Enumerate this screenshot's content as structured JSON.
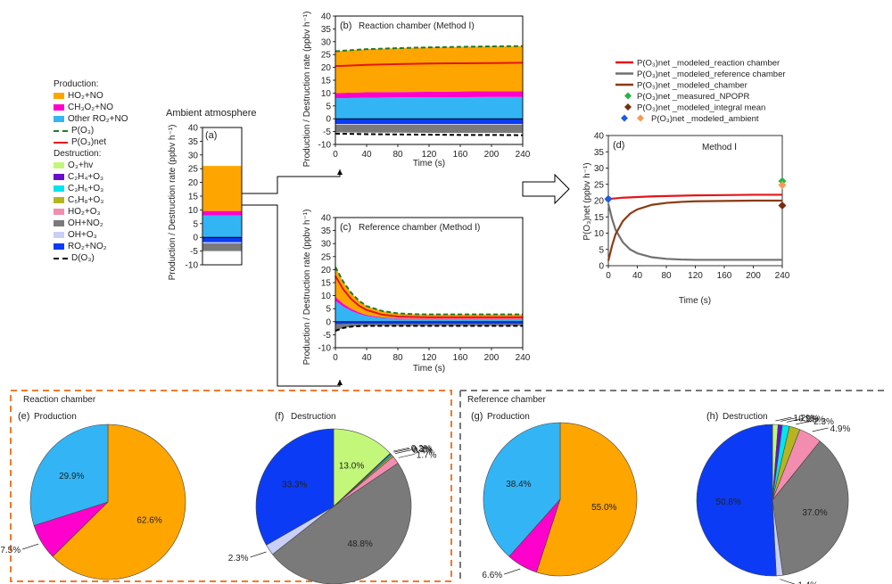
{
  "legend": {
    "production_header": "Production:",
    "destruction_header": "Destruction:",
    "production": [
      {
        "label": "HO₂+NO",
        "color": "#FFA500",
        "kind": "box"
      },
      {
        "label": "CH₃O₂+NO",
        "color": "#FF00CC",
        "kind": "box"
      },
      {
        "label": "Other RO₂+NO",
        "color": "#33B5F5",
        "kind": "box"
      },
      {
        "label": "P(O₃)",
        "color": "#1E7A2E",
        "kind": "dash"
      },
      {
        "label": "P(O₃)net",
        "color": "#E4161B",
        "kind": "line"
      }
    ],
    "destruction": [
      {
        "label": "O₃+hv",
        "color": "#C3F77A",
        "kind": "box"
      },
      {
        "label": "C₂H₄+O₃",
        "color": "#6A0DCD",
        "kind": "box"
      },
      {
        "label": "C₃H₆+O₃",
        "color": "#00E5EE",
        "kind": "box"
      },
      {
        "label": "C₅H₈+O₃",
        "color": "#B5B51F",
        "kind": "box"
      },
      {
        "label": "HO₂+O₃",
        "color": "#F28DB0",
        "kind": "box"
      },
      {
        "label": "OH+NO₂",
        "color": "#7A7A7A",
        "kind": "box"
      },
      {
        "label": "OH+O₃",
        "color": "#C9CFF5",
        "kind": "box"
      },
      {
        "label": "RO₂+NO₂",
        "color": "#0B3BF5",
        "kind": "box"
      },
      {
        "label": "D(O₃)",
        "color": "#000000",
        "kind": "dash"
      }
    ]
  },
  "panel_a": {
    "title": "Ambient atmosphere",
    "label": "(a)",
    "ylabel": "Production / Destruction rate (ppbv h⁻¹)"
  },
  "panel_b": {
    "label": "(b)",
    "title": "Reaction chamber (Method Ⅰ)",
    "xlabel": "Time (s)",
    "ylabel": "Production / Destruction rate (ppbv h⁻¹)"
  },
  "panel_c": {
    "label": "(c)",
    "title": "Reference chamber (Method Ⅰ)",
    "xlabel": "Time (s)",
    "ylabel": "Production / Destruction rate (ppbv h⁻¹)"
  },
  "panel_d": {
    "label": "(d)",
    "title": "Method Ⅰ",
    "xlabel": "Time (s)",
    "ylabel": "P(O₃)net (ppbv h⁻¹)",
    "legend": [
      {
        "label": "P(O₃)net _modeled_reaction chamber",
        "color": "#E4161B",
        "kind": "line"
      },
      {
        "label": "P(O₃)net _modeled_reference chamber",
        "color": "#707070",
        "kind": "line"
      },
      {
        "label": "P(O₃)net _modeled_chamber",
        "color": "#8B3A12",
        "kind": "line"
      },
      {
        "label": "P(O₃)net _measured_NPOPR",
        "color": "#22B545",
        "kind": "diamond"
      },
      {
        "label": "P(O₃)net _modeled_integral mean",
        "color": "#7A2C0E",
        "kind": "diamond"
      },
      {
        "label": "P(O₃)net _modeled_ambient",
        "color": "#1F5BE0",
        "kind": "diamond2",
        "color2": "#F59A55"
      }
    ]
  },
  "section_reaction": "Reaction chamber",
  "section_reference": "Reference chamber",
  "pies": {
    "e": {
      "label": "(e)",
      "title": "Production"
    },
    "f": {
      "label": "(f)",
      "title": "Destruction"
    },
    "g": {
      "label": "(g)",
      "title": "Production"
    },
    "h": {
      "label": "(h)",
      "title": "Destruction"
    }
  },
  "chart_data": [
    {
      "type": "bar",
      "id": "a",
      "ylim": [
        -10,
        40
      ],
      "yticks": [
        -10,
        -5,
        0,
        5,
        10,
        15,
        20,
        25,
        30,
        35,
        40
      ],
      "positive": [
        {
          "name": "Other RO₂+NO",
          "value": 8.0
        },
        {
          "name": "CH₃O₂+NO",
          "value": 1.6
        },
        {
          "name": "HO₂+NO",
          "value": 16.4
        }
      ],
      "negative": [
        {
          "name": "RO₂+NO₂",
          "value": -1.8
        },
        {
          "name": "OH+O₃",
          "value": -0.4
        },
        {
          "name": "OH+NO₂",
          "value": -2.8
        }
      ],
      "P_O3": 26.0,
      "P_O3_net": 20.5,
      "D_O3": -5.5
    },
    {
      "type": "area",
      "id": "b",
      "xlim": [
        0,
        240
      ],
      "ylim": [
        -10,
        40
      ],
      "xticks": [
        0,
        40,
        80,
        120,
        160,
        200,
        240
      ],
      "yticks": [
        -10,
        -5,
        0,
        5,
        10,
        15,
        20,
        25,
        30,
        35,
        40
      ],
      "x": [
        0,
        40,
        80,
        120,
        160,
        200,
        240
      ],
      "series": [
        {
          "name": "Other RO₂+NO",
          "values": [
            8.0,
            8.2,
            8.3,
            8.4,
            8.4,
            8.5,
            8.5
          ]
        },
        {
          "name": "CH₃O₂+NO",
          "values": [
            2.0,
            2.1,
            2.1,
            2.1,
            2.2,
            2.2,
            2.2
          ]
        },
        {
          "name": "HO₂+NO",
          "values": [
            16.3,
            16.8,
            17.1,
            17.3,
            17.4,
            17.5,
            17.6
          ]
        },
        {
          "name": "RO₂+NO₂",
          "values": [
            -2.0,
            -2.0,
            -2.0,
            -2.0,
            -2.0,
            -2.0,
            -2.0
          ]
        },
        {
          "name": "OH+O₃",
          "values": [
            -0.3,
            -0.3,
            -0.3,
            -0.3,
            -0.3,
            -0.3,
            -0.3
          ]
        },
        {
          "name": "OH+NO₂",
          "values": [
            -3.0,
            -3.1,
            -3.1,
            -3.2,
            -3.2,
            -3.2,
            -3.2
          ]
        }
      ],
      "P_O3": [
        26.3,
        27.1,
        27.5,
        27.8,
        28.0,
        28.2,
        28.3
      ],
      "P_O3_net": [
        20.5,
        21.0,
        21.3,
        21.5,
        21.6,
        21.7,
        21.8
      ],
      "D_O3": [
        -5.8,
        -6.0,
        -6.1,
        -6.2,
        -6.3,
        -6.3,
        -6.4
      ]
    },
    {
      "type": "area",
      "id": "c",
      "xlim": [
        0,
        240
      ],
      "ylim": [
        -10,
        40
      ],
      "xticks": [
        0,
        40,
        80,
        120,
        160,
        200,
        240
      ],
      "yticks": [
        -10,
        -5,
        0,
        5,
        10,
        15,
        20,
        25,
        30,
        35,
        40
      ],
      "x": [
        0,
        10,
        20,
        30,
        40,
        60,
        80,
        100,
        120,
        160,
        200,
        240
      ],
      "series": [
        {
          "name": "Other RO₂+NO",
          "values": [
            8.0,
            5.8,
            4.2,
            3.0,
            2.2,
            1.4,
            1.1,
            1.0,
            1.0,
            1.0,
            1.0,
            1.0
          ]
        },
        {
          "name": "CH₃O₂+NO",
          "values": [
            1.5,
            1.1,
            0.8,
            0.6,
            0.4,
            0.3,
            0.2,
            0.2,
            0.2,
            0.2,
            0.2,
            0.2
          ]
        },
        {
          "name": "HO₂+NO",
          "values": [
            11.5,
            8.5,
            6.2,
            4.5,
            3.4,
            2.4,
            1.9,
            1.7,
            1.6,
            1.6,
            1.6,
            1.6
          ]
        },
        {
          "name": "RO₂+NO₂",
          "values": [
            -1.0,
            -0.9,
            -0.9,
            -0.9,
            -0.9,
            -0.9,
            -0.9,
            -0.9,
            -0.9,
            -0.9,
            -0.9,
            -0.9
          ]
        },
        {
          "name": "OH+NO₂",
          "values": [
            -2.5,
            -1.5,
            -1.0,
            -0.8,
            -0.7,
            -0.7,
            -0.7,
            -0.7,
            -0.7,
            -0.7,
            -0.7,
            -0.7
          ]
        }
      ],
      "P_O3": [
        21.0,
        15.4,
        11.2,
        8.1,
        6.0,
        4.1,
        3.2,
        2.9,
        2.8,
        2.8,
        2.8,
        2.8
      ],
      "P_O3_net": [
        17.5,
        12.5,
        8.8,
        6.2,
        4.5,
        2.7,
        2.0,
        1.8,
        1.7,
        1.7,
        1.7,
        1.7
      ],
      "D_O3": [
        -3.5,
        -2.4,
        -1.9,
        -1.7,
        -1.6,
        -1.6,
        -1.6,
        -1.6,
        -1.6,
        -1.6,
        -1.6,
        -1.6
      ]
    },
    {
      "type": "line",
      "id": "d",
      "xlim": [
        0,
        240
      ],
      "ylim": [
        0,
        40
      ],
      "xticks": [
        0,
        40,
        80,
        120,
        160,
        200,
        240
      ],
      "yticks": [
        0,
        5,
        10,
        15,
        20,
        25,
        30,
        35,
        40
      ],
      "x": [
        0,
        5,
        10,
        20,
        30,
        40,
        60,
        80,
        100,
        120,
        160,
        200,
        240
      ],
      "series": [
        {
          "name": "P(O₃)net _modeled_reaction chamber",
          "values": [
            20.5,
            20.6,
            20.7,
            20.9,
            21.0,
            21.1,
            21.3,
            21.4,
            21.5,
            21.6,
            21.7,
            21.8,
            21.8
          ]
        },
        {
          "name": "P(O₃)net _modeled_reference chamber",
          "values": [
            19.0,
            14.5,
            11.0,
            7.2,
            5.0,
            3.8,
            2.6,
            2.1,
            1.9,
            1.8,
            1.8,
            1.8,
            1.8
          ]
        },
        {
          "name": "P(O₃)net _modeled_chamber",
          "values": [
            1.5,
            6.1,
            9.7,
            13.7,
            16.0,
            17.3,
            18.7,
            19.3,
            19.6,
            19.8,
            19.9,
            20.0,
            20.0
          ]
        }
      ],
      "markers": [
        {
          "name": "P(O₃)net _modeled_ambient",
          "x": 0,
          "y": 20.5
        },
        {
          "name": "P(O₃)net _measured_NPOPR",
          "x": 240,
          "y": 26.0
        },
        {
          "name": "P(O₃)net _modeled_integral mean",
          "x": 240,
          "y": 18.5
        },
        {
          "name": "P(O₃)net _modeled_ambient",
          "x": 240,
          "y": 24.8
        }
      ]
    },
    {
      "type": "pie",
      "id": "e",
      "labels": [
        "HO₂+NO",
        "CH₃O₂+NO",
        "Other RO₂+NO"
      ],
      "values": [
        62.6,
        7.5,
        29.9
      ]
    },
    {
      "type": "pie",
      "id": "f",
      "labels": [
        "O₃+hv",
        "C₂H₄+O₃",
        "C₃H₆+O₃",
        "C₅H₈+O₃",
        "HO₂+O₃",
        "OH+NO₂",
        "OH+O₃",
        "RO₂+NO₂"
      ],
      "values": [
        13.0,
        0.2,
        0.3,
        0.4,
        1.7,
        48.8,
        2.3,
        33.3
      ]
    },
    {
      "type": "pie",
      "id": "g",
      "labels": [
        "HO₂+NO",
        "CH₃O₂+NO",
        "Other RO₂+NO"
      ],
      "values": [
        55.0,
        6.6,
        38.4
      ]
    },
    {
      "type": "pie",
      "id": "h",
      "labels": [
        "O₃+hv",
        "C₂H₄+O₃",
        "C₃H₆+O₃",
        "C₅H₈+O₃",
        "HO₂+O₃",
        "OH+NO₂",
        "OH+O₃",
        "RO₂+NO₂"
      ],
      "values": [
        1.2,
        0.9,
        1.5,
        2.3,
        4.9,
        37.0,
        1.4,
        50.8
      ]
    }
  ]
}
